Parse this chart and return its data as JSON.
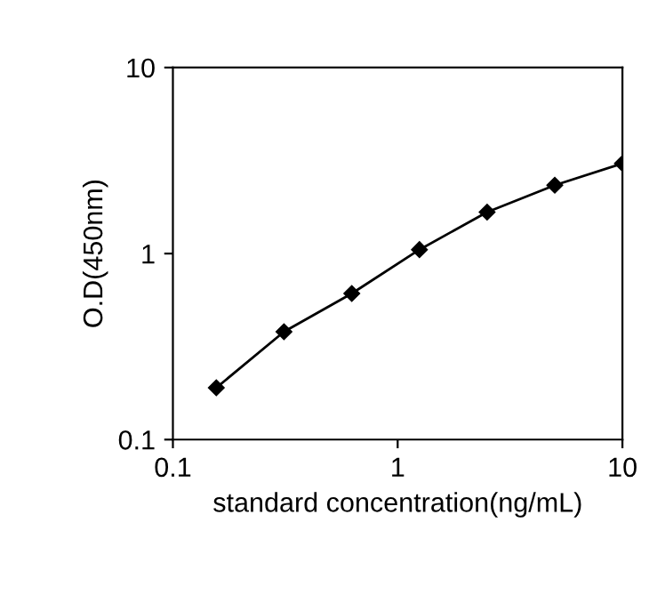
{
  "chart_data": {
    "type": "line",
    "xlabel": "standard concentration(ng/mL)",
    "ylabel": "O.D(450nm)",
    "x": [
      0.156,
      0.312,
      0.625,
      1.25,
      2.5,
      5,
      10
    ],
    "series": [
      {
        "color": "#000000",
        "values": [
          0.19,
          0.38,
          0.61,
          1.05,
          1.67,
          2.33,
          3.05
        ]
      }
    ],
    "log": "xy",
    "xlim": [
      0.1,
      10
    ],
    "ylim": [
      0.1,
      10
    ],
    "xticks": [
      0.1,
      1,
      10
    ],
    "yticks": [
      0.1,
      1,
      10
    ],
    "marker": "diamond",
    "line_style": "solid",
    "grid": false
  }
}
